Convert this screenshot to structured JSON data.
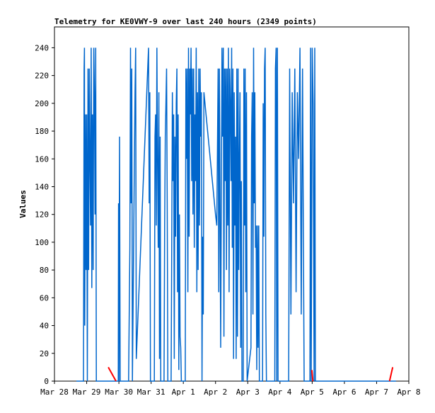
{
  "chart_data": {
    "type": "line",
    "title": "Telemetry for KE0VWY-9 over last 240 hours (2349 points)",
    "y_label": "Values",
    "xlim": [
      0,
      11
    ],
    "xticks": [
      {
        "value": 0,
        "label": "Mar 28"
      },
      {
        "value": 1,
        "label": "Mar 29"
      },
      {
        "value": 2,
        "label": "Mar 30"
      },
      {
        "value": 3,
        "label": "Mar 31"
      },
      {
        "value": 4,
        "label": "Apr 1"
      },
      {
        "value": 5,
        "label": "Apr 2"
      },
      {
        "value": 6,
        "label": "Apr 3"
      },
      {
        "value": 7,
        "label": "Apr 4"
      },
      {
        "value": 8,
        "label": "Apr 5"
      },
      {
        "value": 9,
        "label": "Apr 6"
      },
      {
        "value": 10,
        "label": "Apr 7"
      },
      {
        "value": 11,
        "label": "Apr 8"
      }
    ],
    "ylim": [
      0,
      255
    ],
    "yticks": [
      0,
      20,
      40,
      60,
      80,
      100,
      120,
      140,
      160,
      180,
      200,
      220,
      240
    ],
    "series": [
      {
        "color": "#0066cc",
        "x": [
          0.68,
          0.9,
          0.92,
          0.93,
          0.94,
          0.96,
          0.98,
          1.0,
          1.02,
          1.04,
          1.06,
          1.08,
          1.1,
          1.12,
          1.14,
          1.16,
          1.18,
          1.2,
          1.22,
          1.24,
          1.26,
          1.28,
          1.3,
          1.98,
          1.99,
          2.0,
          2.02,
          2.04,
          2.3,
          2.32,
          2.34,
          2.36,
          2.38,
          2.4,
          2.42,
          2.5,
          2.52,
          2.54,
          2.92,
          2.94,
          2.96,
          2.98,
          3.1,
          3.12,
          3.14,
          3.16,
          3.18,
          3.2,
          3.22,
          3.24,
          3.26,
          3.28,
          3.3,
          3.4,
          3.42,
          3.44,
          3.46,
          3.48,
          3.5,
          3.52,
          3.62,
          3.64,
          3.66,
          3.68,
          3.7,
          3.72,
          3.74,
          3.76,
          3.78,
          3.8,
          3.82,
          3.84,
          3.86,
          3.88,
          3.9,
          3.92,
          3.94,
          4.06,
          4.08,
          4.1,
          4.12,
          4.14,
          4.16,
          4.18,
          4.2,
          4.22,
          4.24,
          4.26,
          4.28,
          4.3,
          4.32,
          4.34,
          4.36,
          4.38,
          4.4,
          4.42,
          4.44,
          4.46,
          4.48,
          4.5,
          4.52,
          4.54,
          4.56,
          4.58,
          4.6,
          4.62,
          4.64,
          5.0,
          5.04,
          5.08,
          5.1,
          5.12,
          5.16,
          5.2,
          5.22,
          5.24,
          5.26,
          5.28,
          5.3,
          5.32,
          5.34,
          5.36,
          5.38,
          5.4,
          5.42,
          5.44,
          5.46,
          5.48,
          5.5,
          5.52,
          5.54,
          5.56,
          5.58,
          5.6,
          5.62,
          5.64,
          5.66,
          5.68,
          5.7,
          5.72,
          5.74,
          5.76,
          5.78,
          5.8,
          5.82,
          5.86,
          5.88,
          5.9,
          5.92,
          5.94,
          5.96,
          5.98,
          6.1,
          6.12,
          6.14,
          6.16,
          6.18,
          6.2,
          6.22,
          6.24,
          6.26,
          6.28,
          6.3,
          6.32,
          6.34,
          6.36,
          6.46,
          6.48,
          6.5,
          6.52,
          6.54,
          6.56,
          6.58,
          6.84,
          6.86,
          6.88,
          6.9,
          6.92,
          6.94,
          7.27,
          7.3,
          7.34,
          7.38,
          7.42,
          7.46,
          7.5,
          7.54,
          7.58,
          7.62,
          7.66,
          7.7,
          7.75,
          7.93,
          7.95,
          7.97,
          8.0,
          8.03,
          8.06,
          8.08,
          8.1,
          10.6
        ],
        "values": [
          0,
          0,
          225,
          240,
          40,
          192,
          80,
          192,
          0,
          225,
          80,
          225,
          160,
          112,
          240,
          67,
          192,
          80,
          240,
          208,
          120,
          240,
          0,
          0,
          128,
          0,
          176,
          0,
          0,
          48,
          96,
          240,
          128,
          225,
          0,
          208,
          240,
          16,
          240,
          128,
          208,
          0,
          0,
          176,
          192,
          112,
          240,
          160,
          96,
          208,
          16,
          176,
          0,
          0,
          112,
          176,
          200,
          225,
          128,
          0,
          0,
          96,
          208,
          144,
          192,
          16,
          176,
          104,
          200,
          225,
          64,
          192,
          8,
          120,
          32,
          24,
          0,
          0,
          225,
          160,
          225,
          64,
          240,
          104,
          225,
          192,
          240,
          144,
          225,
          120,
          225,
          96,
          192,
          144,
          240,
          64,
          208,
          80,
          225,
          112,
          225,
          176,
          208,
          0,
          104,
          48,
          208,
          120,
          112,
          225,
          64,
          225,
          24,
          240,
          176,
          240,
          32,
          225,
          144,
          225,
          80,
          225,
          112,
          240,
          64,
          225,
          200,
          144,
          240,
          96,
          225,
          16,
          208,
          112,
          176,
          16,
          225,
          32,
          225,
          80,
          160,
          208,
          24,
          144,
          0,
          0,
          225,
          112,
          225,
          64,
          208,
          0,
          24,
          176,
          208,
          48,
          240,
          128,
          208,
          96,
          112,
          8,
          112,
          24,
          112,
          0,
          0,
          200,
          104,
          225,
          240,
          48,
          0,
          0,
          225,
          240,
          0,
          240,
          0,
          0,
          225,
          48,
          208,
          128,
          225,
          64,
          208,
          160,
          240,
          48,
          225,
          0,
          0,
          240,
          0,
          240,
          200,
          0,
          240,
          0,
          0
        ]
      },
      {
        "color": "#ff0000",
        "x": [
          1.67,
          1.91,
          null,
          7.99,
          8.02,
          null,
          10.4,
          10.5
        ],
        "values": [
          10,
          0,
          null,
          8,
          0,
          null,
          0,
          10
        ]
      }
    ]
  }
}
